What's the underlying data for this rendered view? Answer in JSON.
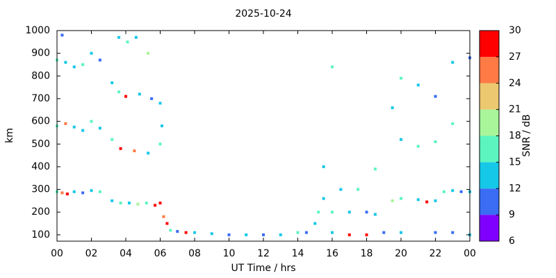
{
  "chart_data": {
    "type": "scatter",
    "title": "2025-10-24",
    "x_label": "UT Time / hrs",
    "y_label": "km",
    "xlim": [
      0,
      24
    ],
    "xticks": [
      {
        "value": 0,
        "label": "00"
      },
      {
        "value": 2,
        "label": "02"
      },
      {
        "value": 4,
        "label": "04"
      },
      {
        "value": 6,
        "label": "06"
      },
      {
        "value": 8,
        "label": "08"
      },
      10,
      12,
      14,
      16,
      18,
      20,
      22,
      {
        "value": 24,
        "label": "00"
      }
    ],
    "ylim": [
      72,
      1000
    ],
    "yticks": [
      100,
      200,
      300,
      400,
      500,
      600,
      700,
      800,
      900,
      1000
    ],
    "colorbar": {
      "label": "SNR / dB",
      "lim": [
        6,
        30
      ],
      "ticks": [
        6,
        9,
        12,
        15,
        18,
        21,
        24,
        27,
        30
      ],
      "colors": [
        "#8000ff",
        "#3a6cf4",
        "#16c8e8",
        "#5cf5c0",
        "#a8f59a",
        "#ecc870",
        "#ff7a45",
        "#ff0000"
      ]
    },
    "x": [
      0,
      0.3,
      0.6,
      1,
      1.5,
      2,
      2.5,
      3.2,
      3.7,
      4.2,
      4.7,
      5.2,
      5.7,
      6,
      6.2,
      6.4,
      6.6,
      7,
      7.5,
      8,
      9,
      10,
      11,
      12,
      13,
      14,
      14.5,
      15,
      15.2,
      15.5,
      16,
      17,
      18,
      18.5,
      16,
      17,
      18,
      19,
      19.5,
      20,
      21,
      21.5,
      22,
      22.5,
      23,
      23.5,
      24,
      23,
      24,
      22,
      20,
      0,
      0.5,
      1,
      1.5,
      2,
      2.5,
      3.2,
      3.7,
      4.5,
      5.3,
      6,
      6.1,
      0,
      0.5,
      1,
      1.5,
      2,
      2.5,
      3.2,
      3.6,
      4,
      4.8,
      5.5,
      6,
      0.3,
      3.6,
      4.1,
      4.6,
      5.3,
      15.5,
      16.5,
      17.5,
      18.5,
      20,
      21,
      22,
      23,
      19.5,
      20,
      21,
      22,
      23,
      24,
      16
    ],
    "y": [
      290,
      285,
      280,
      290,
      285,
      295,
      290,
      250,
      240,
      240,
      235,
      240,
      230,
      240,
      180,
      150,
      120,
      115,
      110,
      110,
      105,
      100,
      100,
      100,
      100,
      110,
      110,
      150,
      200,
      260,
      200,
      200,
      200,
      190,
      110,
      100,
      100,
      110,
      250,
      260,
      255,
      245,
      250,
      290,
      295,
      290,
      290,
      110,
      100,
      110,
      110,
      580,
      590,
      575,
      560,
      600,
      570,
      520,
      480,
      470,
      460,
      500,
      580,
      870,
      860,
      840,
      850,
      900,
      870,
      770,
      730,
      710,
      720,
      700,
      680,
      980,
      970,
      950,
      970,
      900,
      400,
      300,
      300,
      390,
      520,
      490,
      510,
      590,
      660,
      790,
      760,
      710,
      860,
      880,
      840
    ],
    "snr": [
      15,
      24,
      27,
      12,
      9,
      12,
      15,
      12,
      15,
      12,
      18,
      15,
      27,
      30,
      24,
      27,
      15,
      9,
      27,
      12,
      12,
      9,
      12,
      9,
      12,
      15,
      9,
      12,
      15,
      12,
      15,
      12,
      9,
      12,
      12,
      27,
      30,
      9,
      18,
      15,
      12,
      27,
      12,
      15,
      12,
      9,
      12,
      9,
      12,
      9,
      12,
      15,
      24,
      12,
      12,
      15,
      12,
      15,
      27,
      24,
      12,
      15,
      12,
      15,
      12,
      12,
      15,
      12,
      9,
      12,
      15,
      27,
      12,
      9,
      12,
      9,
      12,
      15,
      12,
      18,
      12,
      12,
      15,
      15,
      12,
      15,
      15,
      15,
      12,
      15,
      12,
      9,
      12,
      9,
      15
    ]
  }
}
